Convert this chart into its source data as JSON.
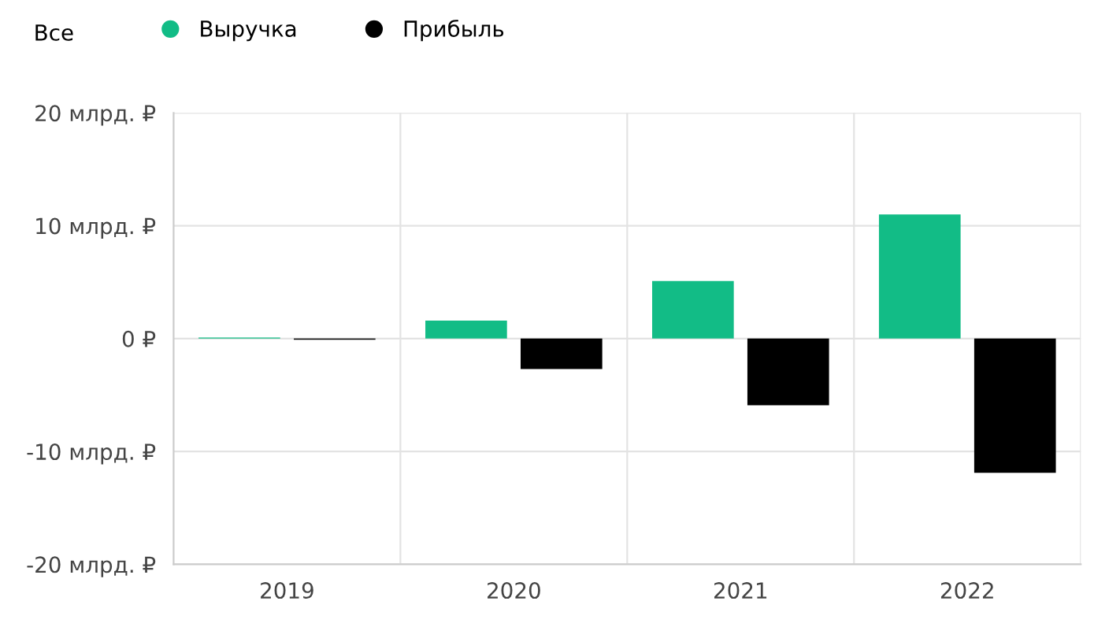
{
  "chart_data": {
    "type": "bar",
    "categories": [
      "2019",
      "2020",
      "2021",
      "2022"
    ],
    "series": [
      {
        "name": "Выручка",
        "color": "#12bc86",
        "values": [
          0.1,
          1.6,
          5.1,
          11.0
        ]
      },
      {
        "name": "Прибыль",
        "color": "#000000",
        "values": [
          -0.1,
          -2.7,
          -5.9,
          -11.9
        ]
      }
    ],
    "ylim": [
      -20,
      20
    ],
    "yticks": [
      {
        "value": -20,
        "label": "-20 млрд. ₽"
      },
      {
        "value": -10,
        "label": "-10 млрд. ₽"
      },
      {
        "value": 0,
        "label": "0 ₽"
      },
      {
        "value": 10,
        "label": "10 млрд. ₽"
      },
      {
        "value": 20,
        "label": "20 млрд. ₽"
      }
    ],
    "grid": true,
    "legend": "top left",
    "annotations": [
      "Все"
    ]
  }
}
